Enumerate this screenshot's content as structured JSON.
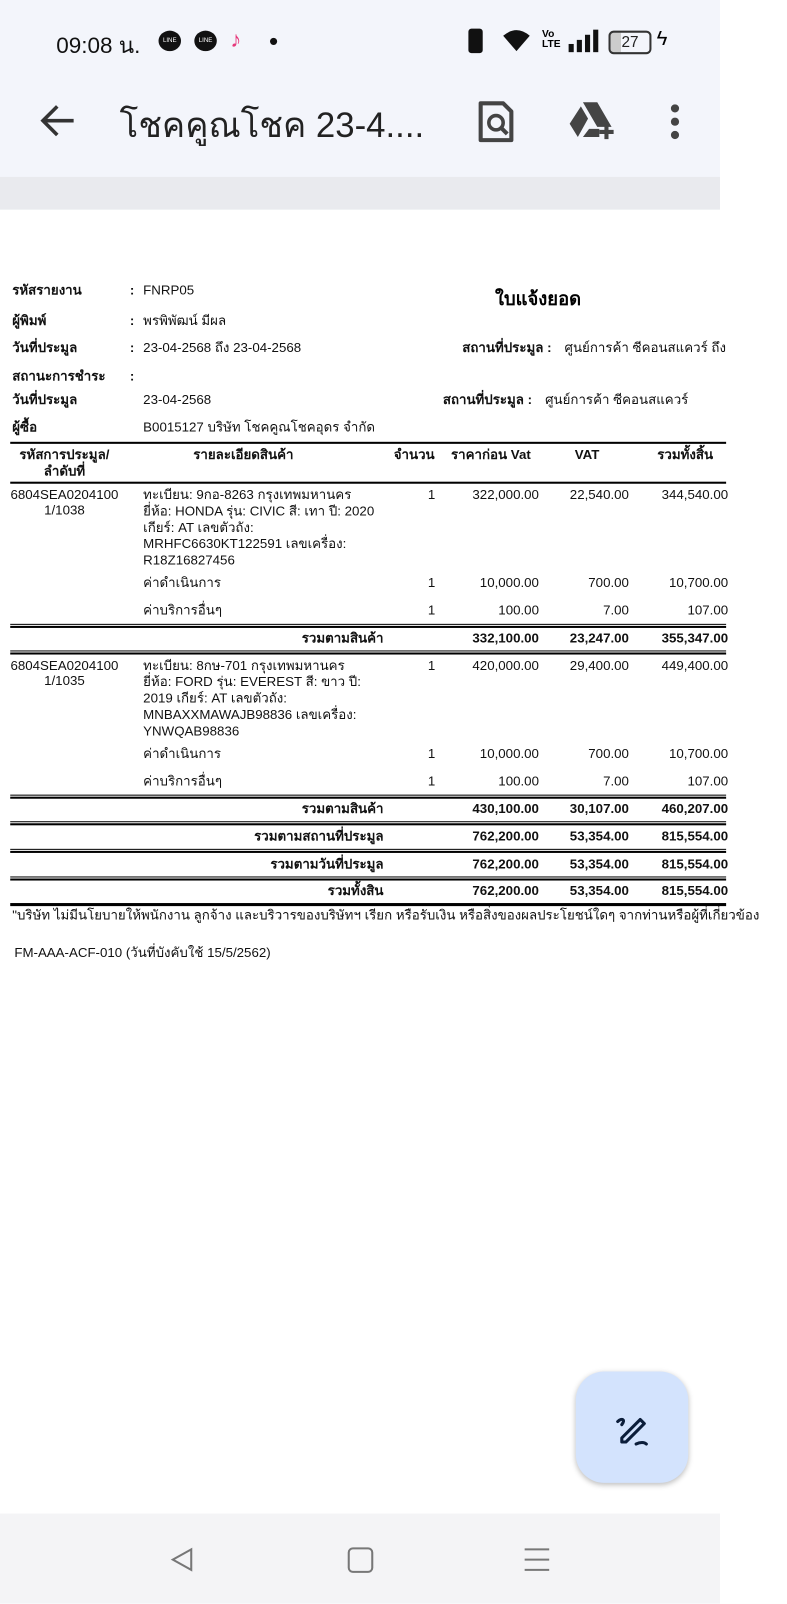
{
  "status_bar": {
    "time": "09:08 น.",
    "battery": "27",
    "notification_icons": [
      "line-icon",
      "line-icon",
      "tiktok-icon",
      "dot-icon"
    ],
    "system_icons": [
      "vibrate-icon",
      "wifi-icon",
      "volte-icon",
      "signal-icon",
      "battery-icon",
      "charging-icon"
    ]
  },
  "toolbar": {
    "title": "โชคคูณโชค 23-4....",
    "icons": [
      "back-arrow-icon",
      "document-search-icon",
      "add-to-drive-icon",
      "more-vert-icon"
    ]
  },
  "report": {
    "title": "ใบแจ้งยอด",
    "header": [
      {
        "label": "รหัสรายงาน",
        "colon": ":",
        "value": "FNRP05"
      },
      {
        "label": "ผู้พิมพ์",
        "colon": ":",
        "value": "พรพิพัฒน์ มีผล"
      },
      {
        "label": "วันที่ประมูล",
        "colon": ":",
        "value": "23-04-2568 ถึง 23-04-2568"
      },
      {
        "label": "สถานะการชำระ",
        "colon": ":",
        "value": ""
      },
      {
        "label": "วันที่ประมูล",
        "colon": "",
        "value": "23-04-2568"
      },
      {
        "label": "ผู้ซื้อ",
        "colon": "",
        "value": "B0015127 บริษัท โชคคูณโชคอุดร   จำกัด"
      }
    ],
    "location1": {
      "label": "สถานที่ประมูล :",
      "value": "ศูนย์การค้า ซีคอนสแควร์ ถึง"
    },
    "location2": {
      "label": "สถานที่ประมูล :",
      "value": "ศูนย์การค้า ซีคอนสแควร์"
    },
    "columns": {
      "code_line1": "รหัสการประมูล/",
      "code_line2": "ลำดับที่",
      "desc": "รายละเอียดสินค้า",
      "qty": "จำนวน",
      "pre_vat": "ราคาก่อน Vat",
      "vat": "VAT",
      "total": "รวมทั้งสิ้น"
    },
    "items": [
      {
        "code": "6804SEA0204100",
        "seq": "1/1038",
        "desc": [
          "ทะเบียน: 9กอ-8263 กรุงเทพมหานคร",
          "ยี่ห้อ: HONDA รุ่น: CIVIC  สี: เทา ปี: 2020",
          "เกียร์: AT เลขตัวถัง:",
          "MRHFC6630KT122591 เลขเครื่อง:",
          "R18Z16827456"
        ],
        "qty": "1",
        "pre_vat": "322,000.00",
        "vat": "22,540.00",
        "total": "344,540.00",
        "fees": [
          {
            "name": "ค่าดำเนินการ",
            "qty": "1",
            "pre_vat": "10,000.00",
            "vat": "700.00",
            "total": "10,700.00"
          },
          {
            "name": "ค่าบริการอื่นๆ",
            "qty": "1",
            "pre_vat": "100.00",
            "vat": "7.00",
            "total": "107.00"
          }
        ],
        "subtotal": {
          "label": "รวมตามสินค้า",
          "pre_vat": "332,100.00",
          "vat": "23,247.00",
          "total": "355,347.00"
        }
      },
      {
        "code": "6804SEA0204100",
        "seq": "1/1035",
        "desc": [
          "ทะเบียน: 8กษ-701 กรุงเทพมหานคร",
          "ยี่ห้อ: FORD รุ่น: EVEREST  สี: ขาว ปี:",
          "2019 เกียร์: AT เลขตัวถัง:",
          "MNBAXXMAWAJB98836 เลขเครื่อง:",
          "YNWQAB98836"
        ],
        "qty": "1",
        "pre_vat": "420,000.00",
        "vat": "29,400.00",
        "total": "449,400.00",
        "fees": [
          {
            "name": "ค่าดำเนินการ",
            "qty": "1",
            "pre_vat": "10,000.00",
            "vat": "700.00",
            "total": "10,700.00"
          },
          {
            "name": "ค่าบริการอื่นๆ",
            "qty": "1",
            "pre_vat": "100.00",
            "vat": "7.00",
            "total": "107.00"
          }
        ],
        "subtotal": {
          "label": "รวมตามสินค้า",
          "pre_vat": "430,100.00",
          "vat": "30,107.00",
          "total": "460,207.00"
        }
      }
    ],
    "totals": [
      {
        "label": "รวมตามสถานที่ประมูล",
        "pre_vat": "762,200.00",
        "vat": "53,354.00",
        "total": "815,554.00"
      },
      {
        "label": "รวมตามวันที่ประมูล",
        "pre_vat": "762,200.00",
        "vat": "53,354.00",
        "total": "815,554.00"
      },
      {
        "label": "รวมทั้งสิน",
        "pre_vat": "762,200.00",
        "vat": "53,354.00",
        "total": "815,554.00"
      }
    ],
    "note": "\"บริษัท ไม่มีนโยบายให้พนักงาน ลูกจ้าง และบริวารของบริษัทฯ เรียก หรือรับเงิน หรือสิ่งของผลประโยชน์ใดๆ จากท่านหรือผู้ที่เกี่ยวข้อง",
    "form_id": "FM-AAA-ACF-010 (วันที่บังคับใช้ 15/5/2562)"
  },
  "fab": {
    "icon": "edit-pen-icon"
  },
  "nav": {
    "icons": [
      "nav-back-icon",
      "nav-home-icon",
      "nav-menu-icon"
    ]
  }
}
